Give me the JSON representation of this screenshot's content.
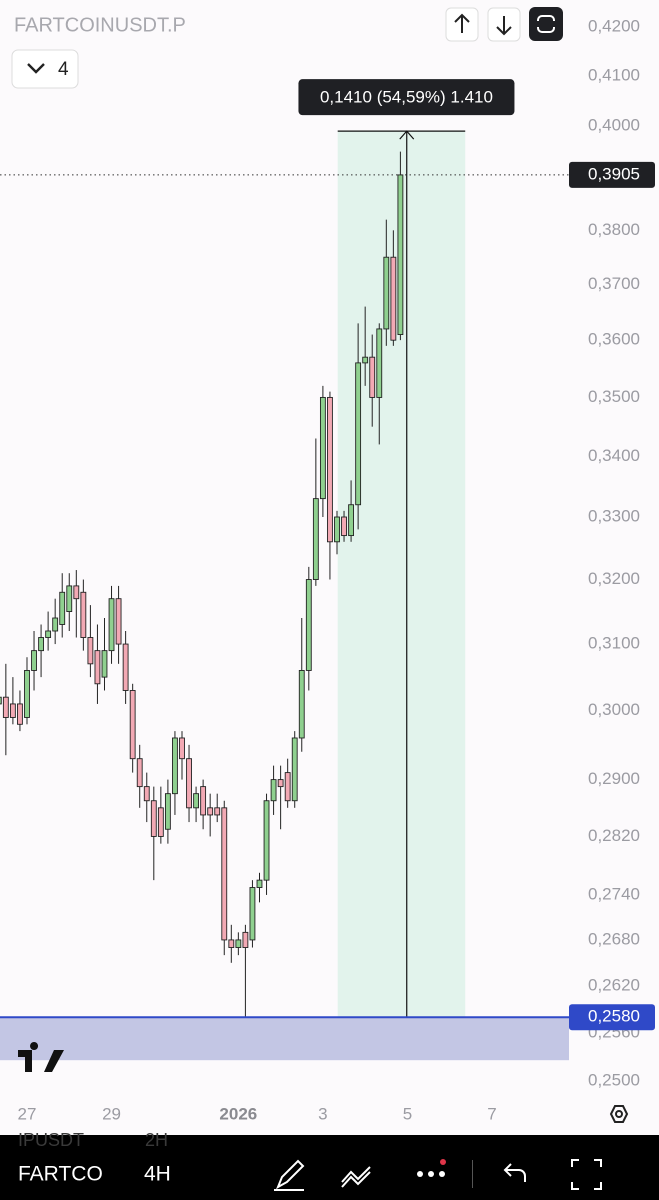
{
  "chart_data": {
    "type": "candlestick",
    "title": "FARTCOINUSDT.P",
    "x": [
      0,
      1,
      2,
      3,
      4,
      5,
      6,
      7,
      8,
      9,
      10,
      11,
      12,
      13,
      14,
      15,
      16,
      17,
      18,
      19,
      20,
      21,
      22,
      23,
      24,
      25,
      26,
      27,
      28,
      29,
      30,
      31,
      32,
      33,
      34,
      35,
      36,
      37,
      38,
      39,
      40,
      41,
      42,
      43,
      44,
      45,
      46,
      47,
      48,
      49,
      50,
      51,
      52,
      53,
      54,
      55,
      56,
      57
    ],
    "open": [
      0.301,
      0.302,
      0.301,
      0.301,
      0.299,
      0.306,
      0.309,
      0.311,
      0.312,
      0.313,
      0.315,
      0.319,
      0.318,
      0.311,
      0.309,
      0.305,
      0.309,
      0.317,
      0.31,
      0.303,
      0.293,
      0.289,
      0.287,
      0.286,
      0.283,
      0.288,
      0.296,
      0.293,
      0.286,
      0.289,
      0.286,
      0.286,
      0.286,
      0.268,
      0.267,
      0.269,
      0.268,
      0.275,
      0.276,
      0.287,
      0.29,
      0.291,
      0.287,
      0.296,
      0.306,
      0.32,
      0.333,
      0.35,
      0.326,
      0.33,
      0.327,
      0.332,
      0.356,
      0.357,
      0.35,
      0.362,
      0.375,
      0.361
    ],
    "high": [
      0.31,
      0.307,
      0.305,
      0.303,
      0.308,
      0.312,
      0.313,
      0.315,
      0.317,
      0.321,
      0.321,
      0.3215,
      0.32,
      0.316,
      0.313,
      0.314,
      0.319,
      0.319,
      0.312,
      0.304,
      0.295,
      0.291,
      0.289,
      0.289,
      0.29,
      0.297,
      0.297,
      0.295,
      0.289,
      0.29,
      0.288,
      0.288,
      0.287,
      0.27,
      0.269,
      0.27,
      0.276,
      0.277,
      0.288,
      0.292,
      0.292,
      0.293,
      0.297,
      0.314,
      0.322,
      0.343,
      0.352,
      0.351,
      0.331,
      0.331,
      0.336,
      0.363,
      0.366,
      0.361,
      0.363,
      0.382,
      0.38,
      0.395
    ],
    "low": [
      0.296,
      0.2935,
      0.298,
      0.297,
      0.298,
      0.303,
      0.305,
      0.309,
      0.31,
      0.311,
      0.312,
      0.311,
      0.309,
      0.305,
      0.301,
      0.303,
      0.307,
      0.307,
      0.301,
      0.291,
      0.286,
      0.284,
      0.276,
      0.281,
      0.281,
      0.285,
      0.29,
      0.284,
      0.284,
      0.283,
      0.282,
      0.284,
      0.266,
      0.265,
      0.266,
      0.258,
      0.267,
      0.273,
      0.274,
      0.285,
      0.283,
      0.286,
      0.286,
      0.294,
      0.303,
      0.319,
      0.33,
      0.32,
      0.324,
      0.326,
      0.326,
      0.328,
      0.352,
      0.345,
      0.342,
      0.359,
      0.359,
      0.36
    ],
    "close": [
      0.302,
      0.299,
      0.299,
      0.298,
      0.306,
      0.309,
      0.311,
      0.312,
      0.314,
      0.318,
      0.319,
      0.317,
      0.311,
      0.307,
      0.304,
      0.309,
      0.317,
      0.31,
      0.303,
      0.293,
      0.289,
      0.287,
      0.282,
      0.282,
      0.288,
      0.296,
      0.293,
      0.286,
      0.288,
      0.285,
      0.285,
      0.285,
      0.268,
      0.267,
      0.268,
      0.267,
      0.275,
      0.276,
      0.287,
      0.29,
      0.289,
      0.287,
      0.296,
      0.306,
      0.32,
      0.333,
      0.35,
      0.326,
      0.33,
      0.327,
      0.332,
      0.356,
      0.357,
      0.35,
      0.362,
      0.375,
      0.36,
      0.3905
    ],
    "up_color": "#8fd08f",
    "down_color": "#f2a9b4",
    "xlim": [
      0.17,
      80.93
    ],
    "xticks": [
      {
        "value": 4,
        "label": "27"
      },
      {
        "value": 16,
        "label": "29"
      },
      {
        "value": 34,
        "label": "2026"
      },
      {
        "value": 46,
        "label": "3"
      },
      {
        "value": 58,
        "label": "5"
      },
      {
        "value": 70,
        "label": "7"
      }
    ],
    "ylim": [
      0.2477,
      0.4256
    ],
    "log_y": true,
    "yticks": [
      {
        "value": 0.42,
        "label": "0,4200"
      },
      {
        "value": 0.41,
        "label": "0,4100"
      },
      {
        "value": 0.4,
        "label": "0,4000"
      },
      {
        "value": 0.38,
        "label": "0,3800"
      },
      {
        "value": 0.37,
        "label": "0,3700"
      },
      {
        "value": 0.36,
        "label": "0,3600"
      },
      {
        "value": 0.35,
        "label": "0,3500"
      },
      {
        "value": 0.34,
        "label": "0,3400"
      },
      {
        "value": 0.33,
        "label": "0,3300"
      },
      {
        "value": 0.32,
        "label": "0,3200"
      },
      {
        "value": 0.31,
        "label": "0,3100"
      },
      {
        "value": 0.3,
        "label": "0,3000"
      },
      {
        "value": 0.29,
        "label": "0,2900"
      },
      {
        "value": 0.282,
        "label": "0,2820"
      },
      {
        "value": 0.274,
        "label": "0,2740"
      },
      {
        "value": 0.268,
        "label": "0,2680"
      },
      {
        "value": 0.262,
        "label": "0,2620"
      },
      {
        "value": 0.256,
        "label": "0,2560"
      },
      {
        "value": 0.25,
        "label": "0,2500"
      }
    ],
    "last_price": {
      "value": 0.3905,
      "label": "0,3905"
    },
    "horizontal_line": {
      "value": 0.258,
      "label": "0,2580",
      "color": "#2f49c8"
    },
    "zone": {
      "from": 0.258,
      "to": 0.2526,
      "color": "#c3c6e4"
    },
    "measure": {
      "x_range": [
        48.1,
        66.2
      ],
      "x": 57.9,
      "from": 0.258,
      "to": 0.399,
      "label": "0,1410 (54,59%) 1.410",
      "color": "#e2f3ec"
    }
  },
  "header": {
    "interval_count": "4"
  },
  "toolbar": {
    "symbol": "FARTCO",
    "interval": "4H",
    "behind_symbol": "IPUSDT",
    "behind_interval": "2H"
  }
}
